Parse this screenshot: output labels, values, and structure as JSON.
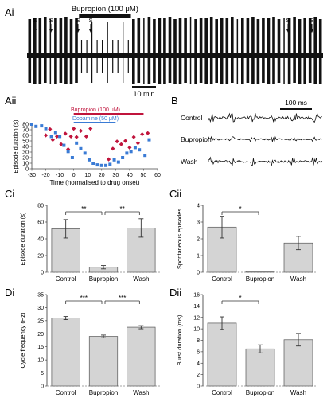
{
  "panel_labels": {
    "ai": "Ai",
    "aii": "Aii",
    "b": "B",
    "ci": "Ci",
    "cii": "Cii",
    "di": "Di",
    "dii": "Dii"
  },
  "chart_data": [
    {
      "id": "Ai",
      "type": "line",
      "drug_label": "Bupropion (100 μM)",
      "scale_bar_label": "10 min",
      "event_marker_label": "S",
      "event_markers": 6,
      "drug_window_episodes": [
        10,
        20
      ],
      "episode_count": 57
    },
    {
      "id": "Aii",
      "type": "scatter",
      "xlabel": "Time (normalised to drug onset)",
      "ylabel": "Episode duration (s)",
      "xlim": [
        -30,
        60
      ],
      "ylim": [
        0,
        80
      ],
      "xticks": [
        "-30",
        "-20",
        "-10",
        "0",
        "10",
        "20",
        "30",
        "40",
        "50",
        "60"
      ],
      "yticks": [
        "0",
        "10",
        "20",
        "30",
        "40",
        "50",
        "60",
        "70",
        "80"
      ],
      "series": [
        {
          "name": "Bupropion (100 μM)",
          "color": "#c0143c",
          "bar": [
            0,
            50
          ],
          "x": [
            -20,
            -17,
            -15,
            -12,
            -9,
            -6,
            -4,
            -2,
            0,
            2,
            5,
            9,
            12,
            25,
            28,
            31,
            34,
            37,
            40,
            43,
            46,
            49,
            53
          ],
          "y": [
            60,
            71,
            52,
            58,
            44,
            63,
            35,
            58,
            72,
            57,
            68,
            58,
            72,
            17,
            36,
            49,
            44,
            50,
            38,
            57,
            46,
            62,
            64
          ]
        },
        {
          "name": "Dopamine (50 μM)",
          "color": "#3a7bd5",
          "bar": [
            0,
            30
          ],
          "x": [
            -30,
            -27,
            -23,
            -20,
            -16,
            -13,
            -10,
            -7,
            -4,
            -1,
            2,
            5,
            8,
            11,
            14,
            17,
            20,
            23,
            26,
            29,
            32,
            35,
            38,
            41,
            44,
            47,
            51,
            54
          ],
          "y": [
            80,
            76,
            77,
            72,
            58,
            65,
            58,
            42,
            31,
            20,
            46,
            36,
            28,
            16,
            10,
            7,
            6,
            6,
            8,
            16,
            12,
            20,
            28,
            31,
            38,
            34,
            24,
            52
          ]
        }
      ]
    },
    {
      "id": "B",
      "type": "line",
      "rows": [
        "Control",
        "Bupropion",
        "Wash"
      ],
      "scale_bar_label": "100 ms"
    },
    {
      "id": "Ci",
      "type": "bar",
      "ylabel": "Episode duration (s)",
      "categories": [
        "Control",
        "Bupropion",
        "Wash"
      ],
      "values": [
        52,
        6,
        53
      ],
      "errors": [
        11,
        2,
        11
      ],
      "ylim": [
        0,
        80
      ],
      "yticks": [
        "0",
        "20",
        "40",
        "60",
        "80"
      ],
      "significance": [
        {
          "from": 0,
          "to": 1,
          "label": "**"
        },
        {
          "from": 1,
          "to": 2,
          "label": "**"
        }
      ]
    },
    {
      "id": "Cii",
      "type": "bar",
      "ylabel": "Spontaneous episodes",
      "categories": [
        "Control",
        "Bupropion",
        "Wash"
      ],
      "values": [
        2.7,
        0.05,
        1.75
      ],
      "errors": [
        0.65,
        0.0,
        0.4
      ],
      "ylim": [
        0,
        4
      ],
      "yticks": [
        "0",
        "1",
        "2",
        "3",
        "4"
      ],
      "significance": [
        {
          "from": 0,
          "to": 1,
          "label": "*"
        }
      ]
    },
    {
      "id": "Di",
      "type": "bar",
      "ylabel": "Cycle frequency (Hz)",
      "categories": [
        "Control",
        "Bupropion",
        "Wash"
      ],
      "values": [
        26,
        19,
        22.5
      ],
      "errors": [
        0.6,
        0.5,
        0.6
      ],
      "ylim": [
        0,
        35
      ],
      "yticks": [
        "0",
        "5",
        "10",
        "15",
        "20",
        "25",
        "30",
        "35"
      ],
      "significance": [
        {
          "from": 0,
          "to": 1,
          "label": "***"
        },
        {
          "from": 1,
          "to": 2,
          "label": "***"
        }
      ]
    },
    {
      "id": "Dii",
      "type": "bar",
      "ylabel": "Burst duration (ms)",
      "categories": [
        "Control",
        "Bupropion",
        "Wash"
      ],
      "values": [
        11,
        6.5,
        8.1
      ],
      "errors": [
        1.1,
        0.7,
        1.1
      ],
      "ylim": [
        0,
        16
      ],
      "yticks": [
        "0",
        "2",
        "4",
        "6",
        "8",
        "10",
        "12",
        "14",
        "16"
      ],
      "significance": [
        {
          "from": 0,
          "to": 1,
          "label": "*"
        }
      ]
    }
  ]
}
